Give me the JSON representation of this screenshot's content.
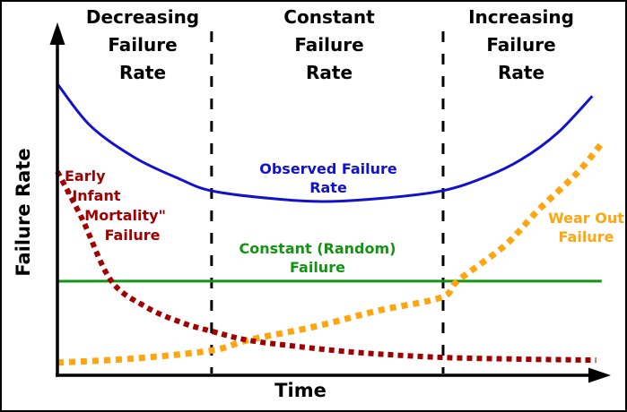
{
  "figure": {
    "background": "#ffffff",
    "border_color": "#000000",
    "top_headers": [
      "Decreasing\nFailure\nRate",
      "Constant\nFailure\nRate",
      "Increasing\nFailure\nRate"
    ],
    "y_axis_label": "Failure Rate",
    "x_axis_label": "Time"
  },
  "curve_labels": {
    "observed": "Observed Failure\nRate",
    "constant": "Constant (Random)\nFailure",
    "infant_mortality": "Early\n\"Infant\n    Mortality\"\n        Failure",
    "wear_out": "Wear Out\nFailure"
  },
  "colors": {
    "observed": "#1212cc",
    "infant_mortality": "#a00000",
    "wear_out": "#ffa510",
    "constant": "#139413",
    "axis": "#000000",
    "region_divider": "#000000"
  },
  "chart_data": {
    "type": "line",
    "title": "Bathtub curve — failure rate over time",
    "xlabel": "Time",
    "ylabel": "Failure Rate",
    "x_range": [
      0,
      100
    ],
    "y_range": [
      0,
      100
    ],
    "grid": false,
    "legend_position": "inline-labels",
    "axis_style": "qualitative-arrows-no-ticks",
    "regions": [
      "Decreasing Failure Rate",
      "Constant Failure Rate",
      "Increasing Failure Rate"
    ],
    "region_boundaries_x": [
      27.9,
      69.8
    ],
    "region_divider_style": "dashed-vertical-black",
    "series": [
      {
        "name": "constant_random_failure",
        "label": "Constant (Random) Failure",
        "color": "#139413",
        "line_style": "solid",
        "stroke_width": 3,
        "points": [
          [
            0,
            26.8
          ],
          [
            98.5,
            26.8
          ]
        ]
      },
      {
        "name": "wear_out_failure",
        "label": "Wear Out Failure",
        "color": "#ffa510",
        "line_style": "dotted",
        "stroke_width": 7,
        "points": [
          [
            0,
            3.6
          ],
          [
            14,
            4.8
          ],
          [
            28,
            7.1
          ],
          [
            34.5,
            10
          ],
          [
            47,
            14
          ],
          [
            58,
            18.4
          ],
          [
            69.5,
            22.2
          ],
          [
            72.5,
            27
          ],
          [
            81,
            37
          ],
          [
            87,
            47
          ],
          [
            94,
            57.5
          ],
          [
            98.5,
            66
          ]
        ]
      },
      {
        "name": "infant_mortality_failure",
        "label": "Early \"Infant Mortality\" Failure",
        "color": "#a00000",
        "line_style": "dotted",
        "stroke_width": 6,
        "points": [
          [
            0,
            58
          ],
          [
            4.5,
            44.5
          ],
          [
            9.7,
            27
          ],
          [
            16,
            19.5
          ],
          [
            22.5,
            15
          ],
          [
            28,
            12.5
          ],
          [
            34.5,
            10
          ],
          [
            43.5,
            8.2
          ],
          [
            55,
            6.4
          ],
          [
            69.5,
            5.1
          ],
          [
            84,
            4.6
          ],
          [
            97.5,
            4.3
          ]
        ]
      },
      {
        "name": "observed_failure_rate",
        "label": "Observed Failure Rate",
        "color": "#1212cc",
        "line_style": "solid",
        "stroke_width": 3,
        "points": [
          [
            0,
            83
          ],
          [
            6,
            71
          ],
          [
            14,
            62
          ],
          [
            22,
            56
          ],
          [
            28,
            52.5
          ],
          [
            39,
            50.3
          ],
          [
            48,
            49.5
          ],
          [
            58,
            50.3
          ],
          [
            69.5,
            52.5
          ],
          [
            77.5,
            56.5
          ],
          [
            84,
            61.5
          ],
          [
            90.5,
            69
          ],
          [
            96.8,
            79.5
          ]
        ]
      }
    ]
  }
}
